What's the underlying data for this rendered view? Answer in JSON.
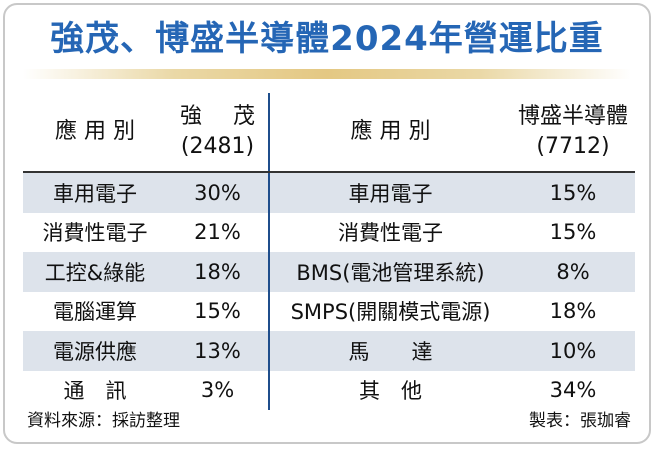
{
  "title": "強茂、博盛半導體2024年營運比重",
  "table": {
    "left": {
      "header_app": "應 用 別",
      "header_company": "強 茂",
      "header_code": "(2481)",
      "rows": [
        {
          "app": "車用電子",
          "value": "30%"
        },
        {
          "app": "消費性電子",
          "value": "21%"
        },
        {
          "app": "工控&綠能",
          "value": "18%"
        },
        {
          "app": "電腦運算",
          "value": "15%"
        },
        {
          "app": "電源供應",
          "value": "13%"
        },
        {
          "app": "通　訊",
          "value": "3%"
        }
      ]
    },
    "right": {
      "header_app": "應 用 別",
      "header_company": "博盛半導體",
      "header_code": "(7712)",
      "rows": [
        {
          "app": "車用電子",
          "value": "15%"
        },
        {
          "app": "消費性電子",
          "value": "15%"
        },
        {
          "app": "BMS(電池管理系統)",
          "value": "8%"
        },
        {
          "app": "SMPS(開關模式電源)",
          "value": "18%"
        },
        {
          "app": "馬　　達",
          "value": "10%"
        },
        {
          "app": "其　他",
          "value": "34%"
        }
      ]
    }
  },
  "footer": {
    "source": "資料來源：採訪整理",
    "credit": "製表：張珈睿"
  },
  "colors": {
    "title": "#2566b5",
    "shade_row": "#dde3eb",
    "divider": "#1f4e8c"
  }
}
